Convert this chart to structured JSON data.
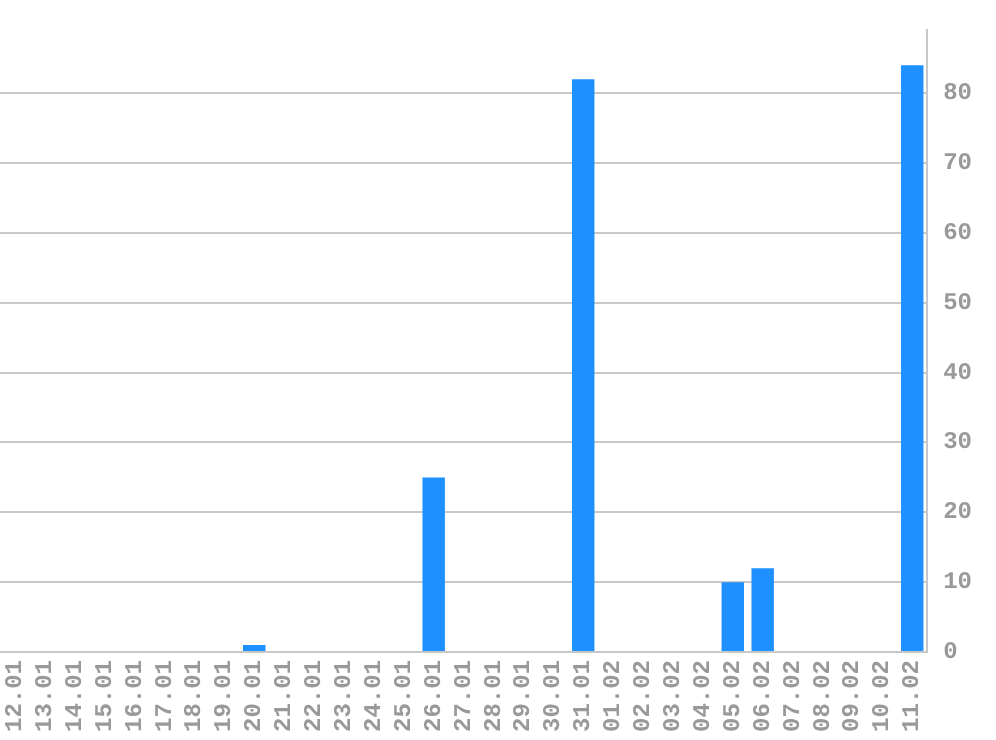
{
  "chart_data": {
    "type": "bar",
    "categories": [
      "12.01",
      "13.01",
      "14.01",
      "15.01",
      "16.01",
      "17.01",
      "18.01",
      "19.01",
      "20.01",
      "21.01",
      "22.01",
      "23.01",
      "24.01",
      "25.01",
      "26.01",
      "27.01",
      "28.01",
      "29.01",
      "30.01",
      "31.01",
      "01.02",
      "02.02",
      "03.02",
      "04.02",
      "05.02",
      "06.02",
      "07.02",
      "08.02",
      "09.02",
      "10.02",
      "11.02"
    ],
    "values": [
      0,
      0,
      0,
      0,
      0,
      0,
      0,
      0,
      1,
      0,
      0,
      0,
      0,
      0,
      25,
      0,
      0,
      0,
      0,
      82,
      0,
      0,
      0,
      0,
      10,
      12,
      0,
      0,
      0,
      0,
      84
    ],
    "color": "#1e90ff",
    "ylim": [
      0,
      89
    ],
    "yticks": [
      0,
      10,
      20,
      30,
      40,
      50,
      60,
      70,
      80
    ],
    "grid": "y"
  }
}
